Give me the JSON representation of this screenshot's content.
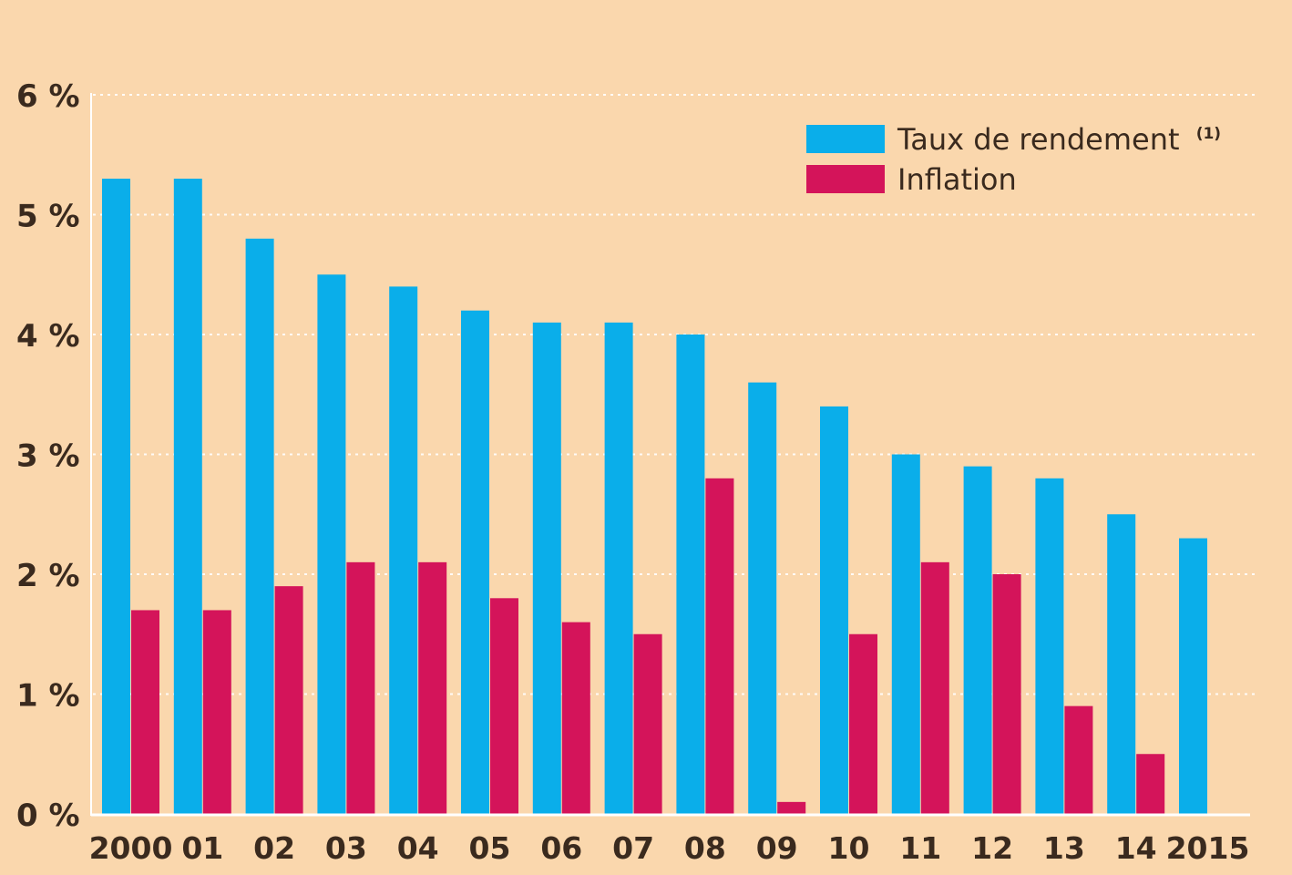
{
  "chart_data": {
    "type": "bar",
    "title": "",
    "xlabel": "",
    "ylabel": "",
    "categories": [
      "2000",
      "01",
      "02",
      "03",
      "04",
      "05",
      "06",
      "07",
      "08",
      "09",
      "10",
      "11",
      "12",
      "13",
      "14",
      "2015"
    ],
    "series": [
      {
        "name": "Taux de rendement",
        "footnote": "(1)",
        "color": "#0aaeea",
        "values": [
          5.3,
          5.3,
          4.8,
          4.5,
          4.4,
          4.2,
          4.1,
          4.1,
          4.0,
          3.6,
          3.4,
          3.0,
          2.9,
          2.8,
          2.5,
          2.3
        ]
      },
      {
        "name": "Inflation",
        "color": "#d4145a",
        "values": [
          1.7,
          1.7,
          1.9,
          2.1,
          2.1,
          1.8,
          1.6,
          1.5,
          2.8,
          0.1,
          1.5,
          2.1,
          2.0,
          0.9,
          0.5,
          null
        ]
      }
    ],
    "ylim": [
      0,
      6
    ],
    "yticks": [
      0,
      1,
      2,
      3,
      4,
      5,
      6
    ],
    "ytick_labels": [
      "0 %",
      "1 %",
      "2 %",
      "3 %",
      "4 %",
      "5 %",
      "6 %"
    ],
    "grid": true,
    "legend_position": "top-right"
  }
}
